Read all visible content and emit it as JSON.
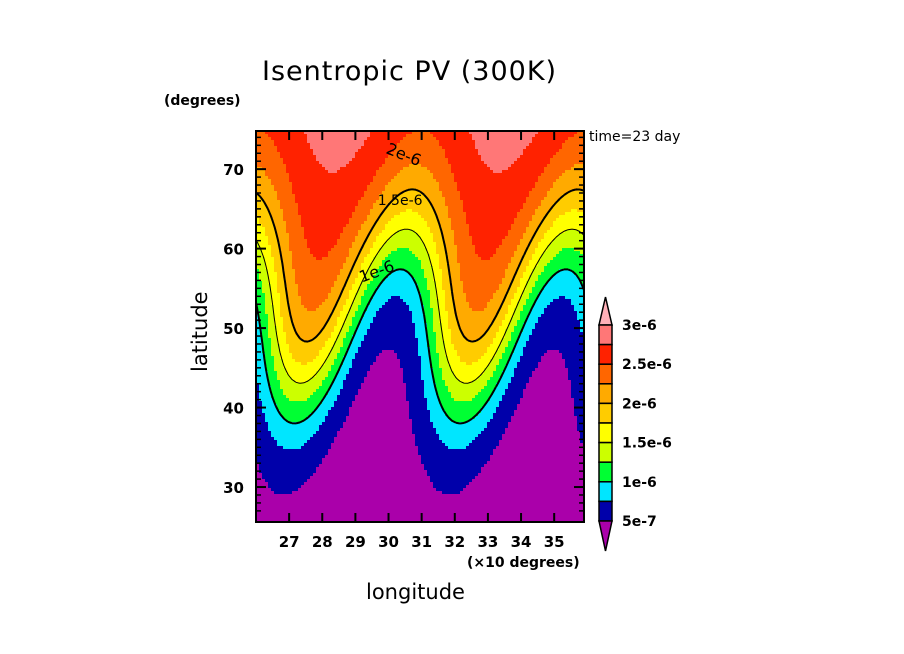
{
  "chart_data": {
    "type": "heatmap",
    "subtype": "filled-contour",
    "title": "Isentropic PV (300K)",
    "annotation": "time=23 day",
    "xlabel": "longitude",
    "xlabel_unit": "(×10 degrees)",
    "ylabel": "latitude",
    "ylabel_unit": "(degrees)",
    "xlim": [
      260,
      359
    ],
    "ylim": [
      25.6,
      74.8
    ],
    "x_ticks": [
      270,
      280,
      290,
      300,
      310,
      320,
      330,
      340,
      350
    ],
    "x_tick_labels": [
      "27",
      "28",
      "29",
      "30",
      "31",
      "32",
      "33",
      "34",
      "35"
    ],
    "y_ticks": [
      30,
      40,
      50,
      60,
      70
    ],
    "y_tick_labels": [
      "30",
      "40",
      "50",
      "60",
      "70"
    ],
    "contour_levels": [
      5e-07,
      7.5e-07,
      1e-06,
      1.25e-06,
      1.5e-06,
      1.75e-06,
      2e-06,
      2.25e-06,
      2.5e-06,
      2.75e-06,
      3e-06
    ],
    "colorbar": {
      "labels": [
        "5e-7",
        "1e-6",
        "1.5e-6",
        "2e-6",
        "2.5e-6",
        "3e-6"
      ],
      "colors": [
        "#aa00aa",
        "#0000aa",
        "#00e6ff",
        "#00ff33",
        "#ccff00",
        "#ffff00",
        "#ffcc00",
        "#ffaa00",
        "#ff6600",
        "#ff2200",
        "#ff7777",
        "#ffb0b8"
      ],
      "extend": "both"
    },
    "contour_lines": [
      {
        "value": 1e-06,
        "label": "1e-6",
        "style": "thick"
      },
      {
        "value": 1.5e-06,
        "label": "1.5e-6",
        "style": "thin"
      },
      {
        "value": 2e-06,
        "label": "2e-6",
        "style": "thick"
      }
    ],
    "description": "Wavy PV field increasing poleward; two troughs near 280 and 330 longitude, ridges near 305 and 358"
  }
}
